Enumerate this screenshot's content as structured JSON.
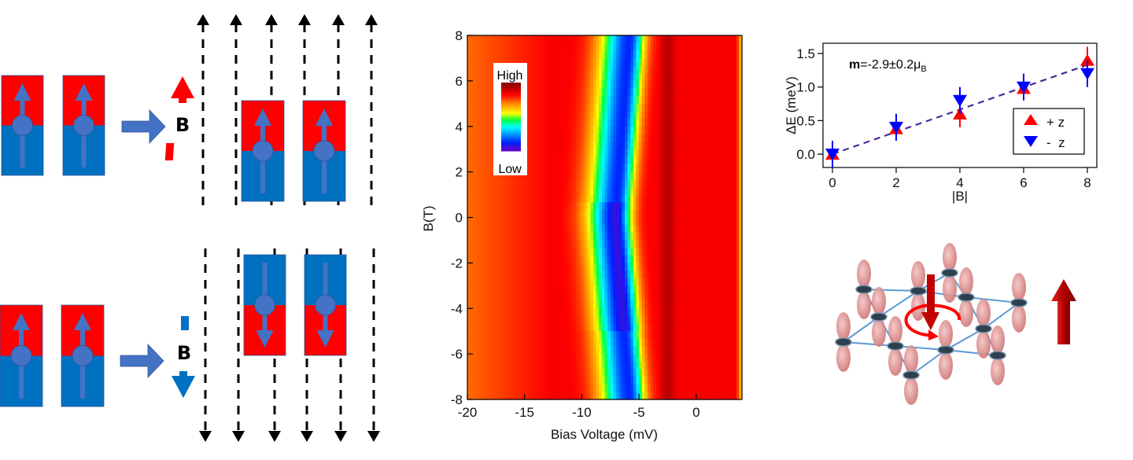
{
  "diagram": {
    "field_label": "B",
    "colors": {
      "north": "#ff0000",
      "south": "#0070c0",
      "spin_arrow": "#4472c4",
      "field_lines": "#000000"
    },
    "top_row": {
      "field_direction": "up",
      "final_moment": "up"
    },
    "bottom_row": {
      "field_direction": "down",
      "final_moment": "down"
    }
  },
  "chart_data": [
    {
      "type": "heatmap",
      "xlabel": "Bias Voltage (mV)",
      "ylabel": "B(T)",
      "xlim": [
        -20,
        4
      ],
      "ylim": [
        -8,
        8
      ],
      "xticks": [
        "-20",
        "-15",
        "-10",
        "-5",
        "0"
      ],
      "yticks": [
        "-8",
        "-6",
        "-4",
        "-2",
        "0",
        "2",
        "4",
        "6",
        "8"
      ],
      "colorbar": {
        "high_label": "High",
        "low_label": "Low",
        "colormap": "rainbow"
      },
      "minimum_ridge": [
        {
          "B": 8,
          "V": -5.8
        },
        {
          "B": 4,
          "V": -6.4
        },
        {
          "B": 0,
          "V": -7.0
        },
        {
          "B": -4,
          "V": -6.4
        },
        {
          "B": -8,
          "V": -5.8
        }
      ],
      "maximum_ridge_V": -2.5
    },
    {
      "type": "scatter",
      "xlabel": "|B|",
      "ylabel": "ΔE (meV)",
      "xlim": [
        -0.3,
        8.3
      ],
      "ylim": [
        -0.2,
        1.65
      ],
      "xticks": [
        "0",
        "2",
        "4",
        "6",
        "8"
      ],
      "yticks": [
        "0.0",
        "0.5",
        "1.0",
        "1.5"
      ],
      "annotation": {
        "bold": "m",
        "text": "=-2.9±0.2μ",
        "sub": "B"
      },
      "legend": {
        "placement": "bottom-right"
      },
      "series": [
        {
          "name": "+ z",
          "marker": "triangle-up",
          "color": "#ff0000",
          "x": [
            0,
            2,
            4,
            6,
            8
          ],
          "y": [
            0.0,
            0.38,
            0.6,
            0.98,
            1.4
          ],
          "err": [
            0.1,
            0.1,
            0.2,
            0.1,
            0.2
          ]
        },
        {
          "name": "-  z",
          "marker": "triangle-down",
          "color": "#0000ff",
          "x": [
            0,
            2,
            4,
            6,
            8
          ],
          "y": [
            0.0,
            0.4,
            0.8,
            1.0,
            1.2
          ],
          "err": [
            0.2,
            0.2,
            0.2,
            0.2,
            0.2
          ]
        }
      ],
      "fit": {
        "x": [
          0,
          8
        ],
        "y": [
          0.0,
          1.33
        ],
        "color": "#4b2a9a",
        "style": "dashed"
      }
    }
  ],
  "lattice": {
    "orbital_color": "#d98080",
    "bond_color": "#5b9bd5",
    "moment_arrow_color": "#c00000",
    "rotation_arrow_color": "#ff0000"
  }
}
